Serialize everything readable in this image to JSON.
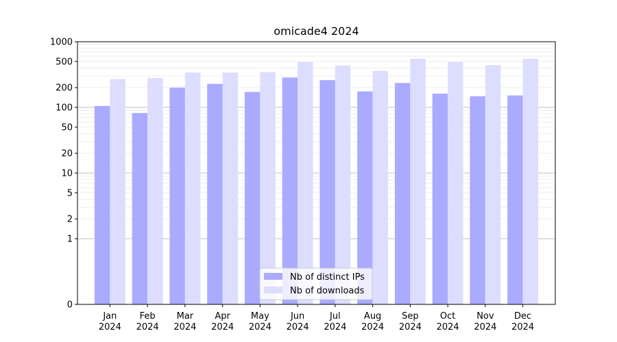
{
  "chart_data": {
    "type": "bar",
    "title": "omicade4 2024",
    "xlabel": "",
    "ylabel": "",
    "yscale": "symlog",
    "ylim": [
      0,
      1000
    ],
    "yticks": [
      0,
      1,
      2,
      5,
      10,
      20,
      50,
      100,
      200,
      500,
      1000
    ],
    "grid": true,
    "legend_position": "bottom-center",
    "categories": [
      [
        "Jan",
        "2024"
      ],
      [
        "Feb",
        "2024"
      ],
      [
        "Mar",
        "2024"
      ],
      [
        "Apr",
        "2024"
      ],
      [
        "May",
        "2024"
      ],
      [
        "Jun",
        "2024"
      ],
      [
        "Jul",
        "2024"
      ],
      [
        "Aug",
        "2024"
      ],
      [
        "Sep",
        "2024"
      ],
      [
        "Oct",
        "2024"
      ],
      [
        "Nov",
        "2024"
      ],
      [
        "Dec",
        "2024"
      ]
    ],
    "series": [
      {
        "name": "Nb of distinct IPs",
        "color": "#aaaaff",
        "values": [
          105,
          82,
          200,
          228,
          172,
          285,
          260,
          175,
          235,
          162,
          148,
          152
        ]
      },
      {
        "name": "Nb of downloads",
        "color": "#ddddff",
        "values": [
          270,
          280,
          340,
          340,
          345,
          490,
          435,
          360,
          550,
          490,
          440,
          550
        ]
      }
    ]
  }
}
